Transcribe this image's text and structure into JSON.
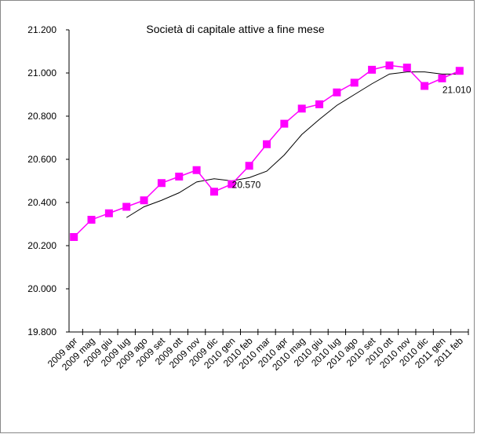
{
  "chart_data": {
    "type": "line",
    "title": "Società di capitale attive a fine mese",
    "categories": [
      "2009 apr",
      "2009 mag",
      "2009 giu",
      "2009 lug",
      "2009 ago",
      "2009 set",
      "2009 ott",
      "2009 nov",
      "2009 dic",
      "2010 gen",
      "2010 feb",
      "2010 mar",
      "2010 apr",
      "2010 mag",
      "2010 giu",
      "2010 lug",
      "2010 ago",
      "2010 set",
      "2010 ott",
      "2010 nov",
      "2010 dic",
      "2011 gen",
      "2011 feb"
    ],
    "series": [
      {
        "color": "#ff00ff",
        "marker": "square",
        "values": [
          20240,
          20320,
          20350,
          20380,
          20410,
          20490,
          20520,
          20550,
          20450,
          20485,
          20570,
          20670,
          20765,
          20835,
          20855,
          20910,
          20955,
          21015,
          21035,
          21025,
          20940,
          20975,
          21010
        ],
        "value_labels": [
          null,
          null,
          null,
          null,
          null,
          null,
          null,
          null,
          null,
          null,
          "20.570",
          null,
          null,
          null,
          null,
          null,
          null,
          null,
          null,
          null,
          null,
          null,
          "21.010"
        ]
      },
      {
        "color": "#000000",
        "values": [
          null,
          null,
          null,
          20330,
          20380,
          20410,
          20445,
          20495,
          20510,
          20500,
          20515,
          20545,
          20620,
          20715,
          20785,
          20850,
          20900,
          20950,
          20995,
          21005,
          21005,
          20995,
          20995
        ]
      }
    ],
    "ylim": [
      19800,
      21200
    ],
    "yticks": [
      {
        "value": 19800,
        "label": "19.800"
      },
      {
        "value": 20000,
        "label": "20.000"
      },
      {
        "value": 20200,
        "label": "20.200"
      },
      {
        "value": 20400,
        "label": "20.400"
      },
      {
        "value": 20600,
        "label": "20.600"
      },
      {
        "value": 20800,
        "label": "20.800"
      },
      {
        "value": 21000,
        "label": "21.000"
      },
      {
        "value": 21200,
        "label": "21.200"
      }
    ]
  }
}
